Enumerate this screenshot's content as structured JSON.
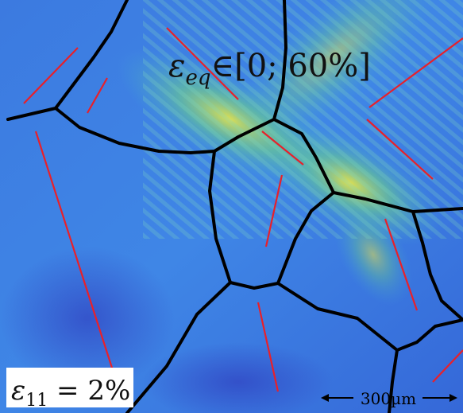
{
  "annotations": {
    "range_symbol": "ε",
    "range_subscript": "eq",
    "range_text": "∈[0; 60%]",
    "load_symbol": "ε",
    "load_subscript": "11",
    "load_text": " = 2%",
    "scale_bar": "300µm"
  }
}
